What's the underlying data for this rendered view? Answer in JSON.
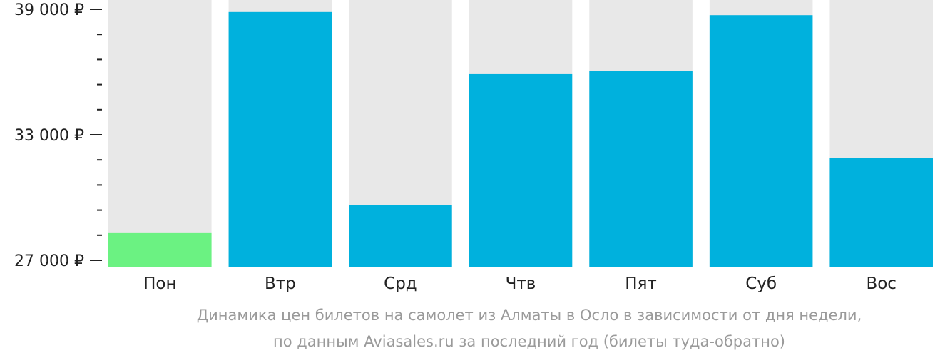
{
  "chart_data": {
    "type": "bar",
    "title": "",
    "xlabel": "",
    "ylabel": "",
    "categories": [
      "Пон",
      "Втр",
      "Срд",
      "Чтв",
      "Пят",
      "Суб",
      "Вос"
    ],
    "values": [
      28300,
      38870,
      29650,
      35900,
      36050,
      38720,
      31900
    ],
    "ylim": [
      27000,
      39500
    ],
    "y_major_ticks": [
      27000,
      33000,
      39000
    ],
    "y_major_tick_labels": [
      "27 000 ₽",
      "33 000 ₽",
      "39 000 ₽"
    ],
    "y_minor_step": 1200,
    "grid": false,
    "legend": "none",
    "colors": {
      "bar": "#00b1dd",
      "bar_min": "#6bf282",
      "bar_background": "#e8e8e8",
      "axis_text": "#222222",
      "caption_text": "#9a9a9a"
    },
    "caption": [
      "Динамика цен билетов на самолет из Алматы в Осло в зависимости от дня недели,",
      "по данным Aviasales.ru за последний год (билеты туда-обратно)"
    ]
  }
}
